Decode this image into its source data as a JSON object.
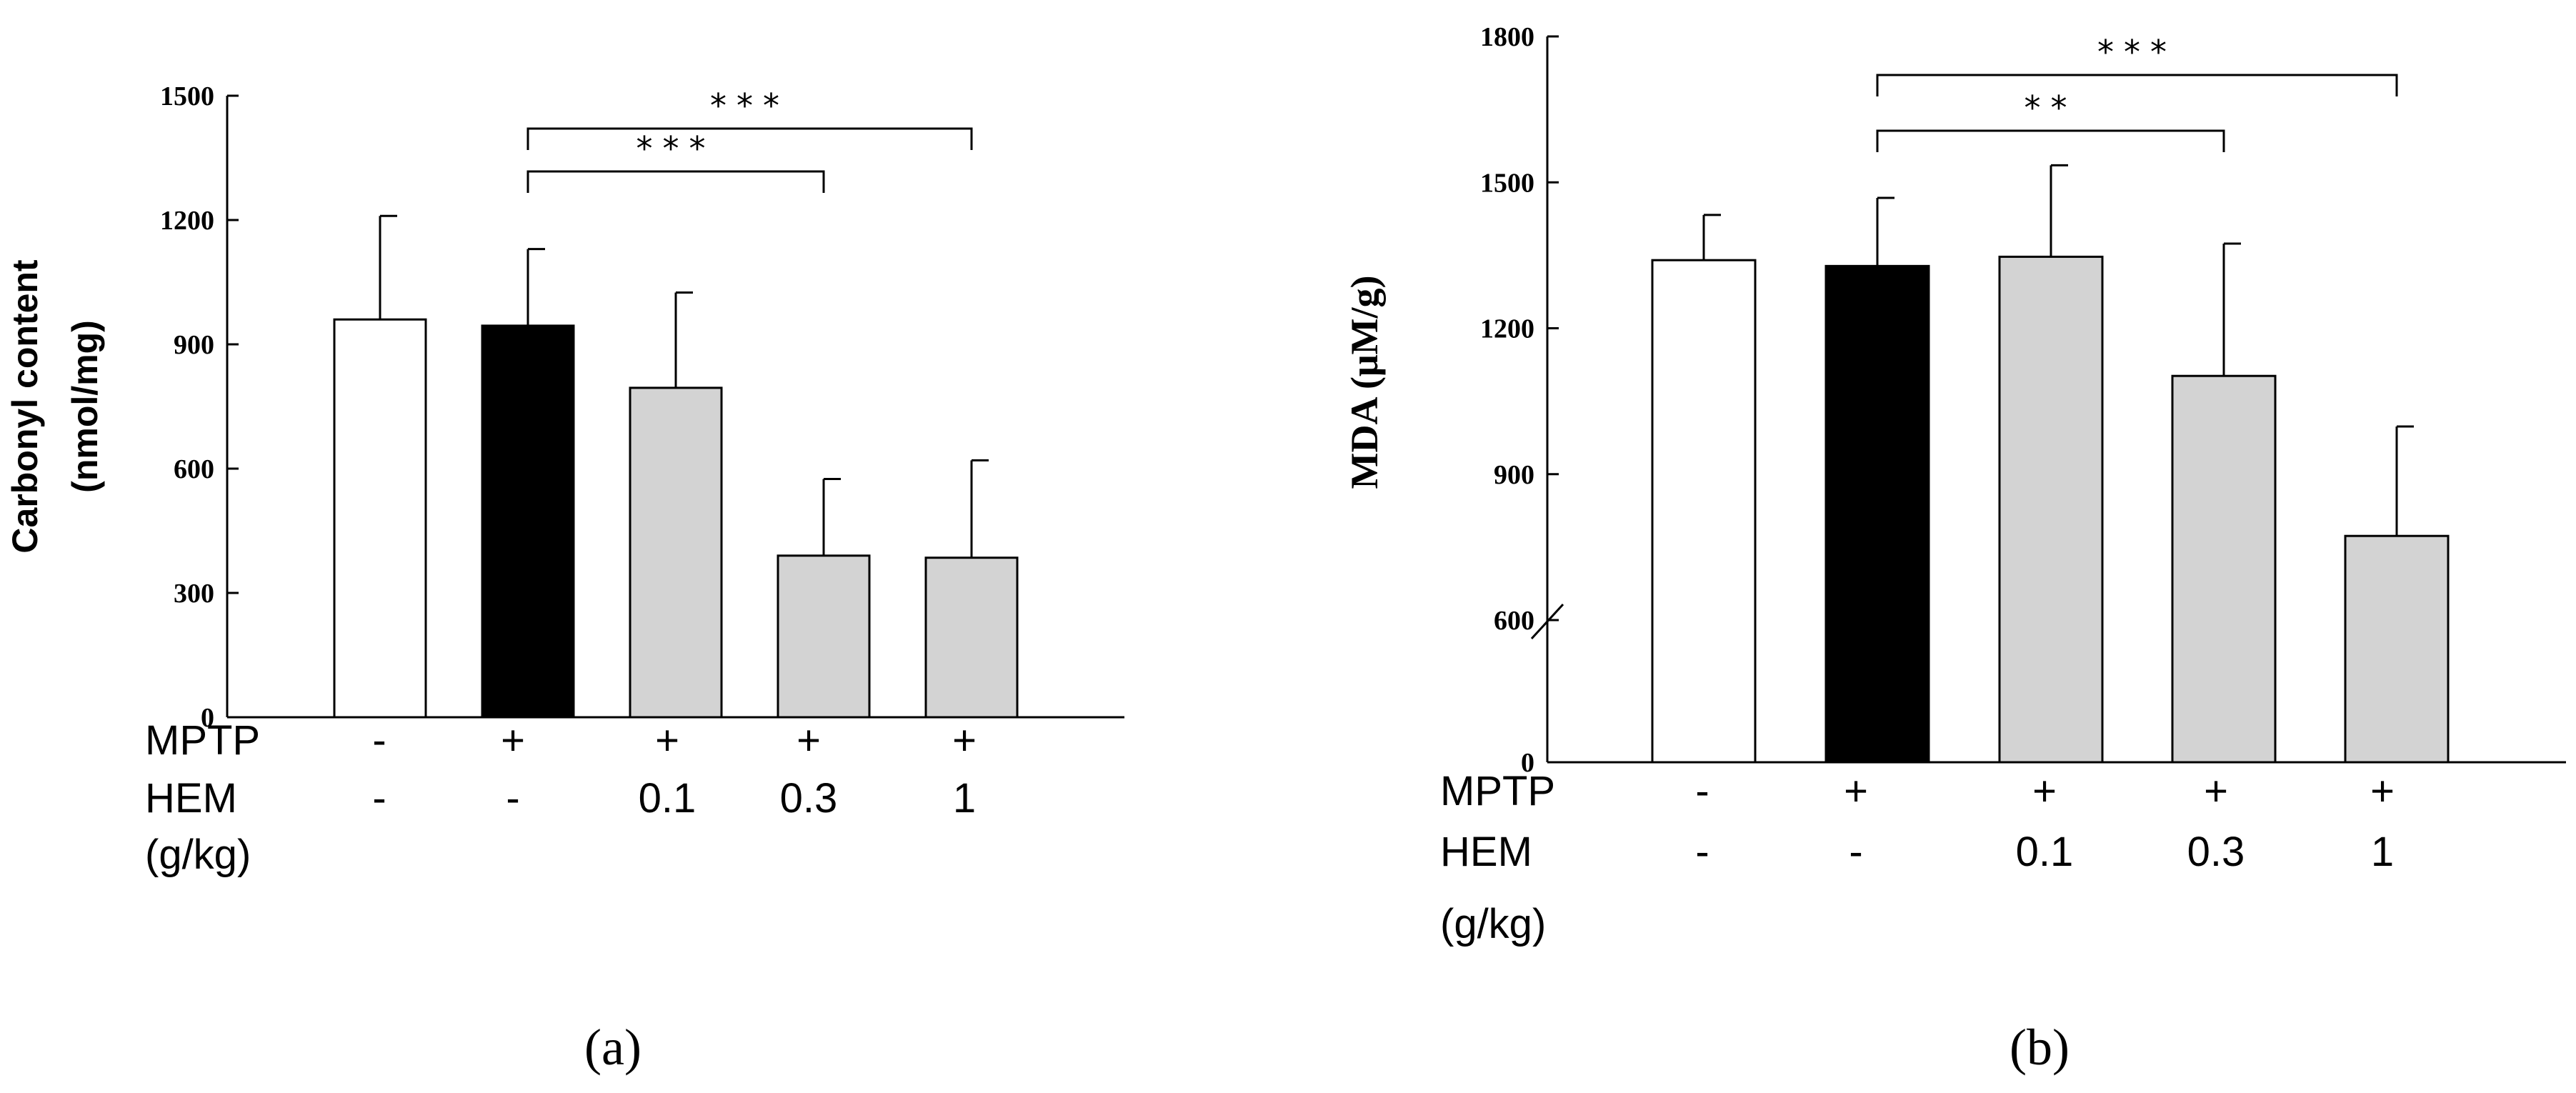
{
  "chart_data": [
    {
      "type": "bar",
      "panel_label": "(a)",
      "ylabel_line1": "Carbonyl content",
      "ylabel_line2": "(nmol/mg)",
      "ylim": [
        0,
        1500
      ],
      "yticks": [
        0,
        300,
        600,
        900,
        1200,
        1500
      ],
      "y_axis_break": false,
      "treatment_rows": [
        {
          "label": "MPTP",
          "values": [
            "-",
            "+",
            "+",
            "+",
            "+"
          ]
        },
        {
          "label": "HEM",
          "values": [
            "-",
            "-",
            "0.1",
            "0.3",
            "1"
          ]
        },
        {
          "label": "(g/kg)",
          "values": [
            "",
            "",
            "",
            "",
            ""
          ]
        }
      ],
      "values": [
        960,
        945,
        795,
        390,
        385
      ],
      "errors": [
        250,
        185,
        230,
        185,
        235
      ],
      "bar_colors": [
        "#ffffff",
        "#000000",
        "#d3d3d3",
        "#d3d3d3",
        "#d3d3d3"
      ],
      "significance": [
        {
          "from": 1,
          "to": 3,
          "label": "***"
        },
        {
          "from": 1,
          "to": 4,
          "label": "***"
        }
      ]
    },
    {
      "type": "bar",
      "panel_label": "(b)",
      "ylabel": "MDA (μM/g)",
      "ylim": [
        0,
        1800
      ],
      "yticks": [
        0,
        600,
        900,
        1200,
        1500,
        1800
      ],
      "y_axis_break": true,
      "break_range": [
        0,
        600
      ],
      "treatment_rows": [
        {
          "label": "MPTP",
          "values": [
            "-",
            "+",
            "+",
            "+",
            "+"
          ]
        },
        {
          "label": "HEM",
          "values": [
            "-",
            "-",
            "0.1",
            "0.3",
            "1"
          ]
        },
        {
          "label": "(g/kg)",
          "values": [
            "",
            "",
            "",
            "",
            ""
          ]
        }
      ],
      "values": [
        1340,
        1328,
        1347,
        1102,
        773
      ],
      "errors": [
        93,
        140,
        188,
        272,
        225
      ],
      "bar_colors": [
        "#ffffff",
        "#000000",
        "#d3d3d3",
        "#d3d3d3",
        "#d3d3d3"
      ],
      "significance": [
        {
          "from": 1,
          "to": 3,
          "label": "**"
        },
        {
          "from": 1,
          "to": 4,
          "label": "***"
        }
      ]
    }
  ]
}
